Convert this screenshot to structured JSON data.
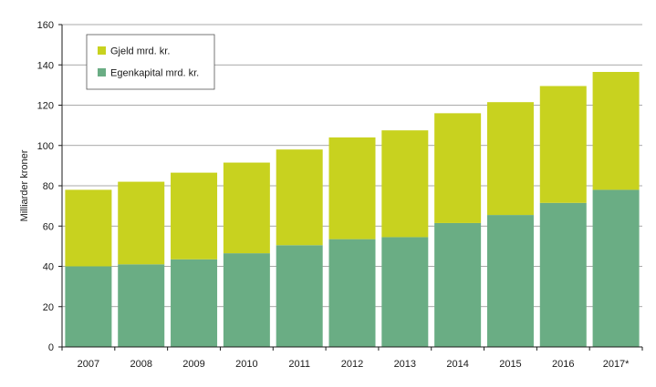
{
  "chart_data": {
    "type": "bar",
    "stacked": true,
    "title": "",
    "xlabel": "",
    "ylabel": "Milliarder kroner",
    "ylim": [
      0,
      160
    ],
    "yticks": [
      0,
      20,
      40,
      60,
      80,
      100,
      120,
      140,
      160
    ],
    "grid": true,
    "legend_position": "top-left",
    "categories": [
      "2007",
      "2008",
      "2009",
      "2010",
      "2011",
      "2012",
      "2013",
      "2014",
      "2015",
      "2016",
      "2017*"
    ],
    "series": [
      {
        "name": "Egenkapital mrd. kr.",
        "color": "#6aad84",
        "values": [
          40,
          41,
          43.5,
          46.5,
          50.5,
          53.5,
          54.5,
          61.5,
          65.5,
          71.5,
          78
        ]
      },
      {
        "name": "Gjeld mrd. kr.",
        "color": "#c8d21f",
        "values": [
          38,
          41,
          43,
          45,
          47.5,
          50.5,
          53,
          54.5,
          56,
          58,
          58.5
        ]
      }
    ],
    "legend_order": [
      1,
      0
    ]
  }
}
